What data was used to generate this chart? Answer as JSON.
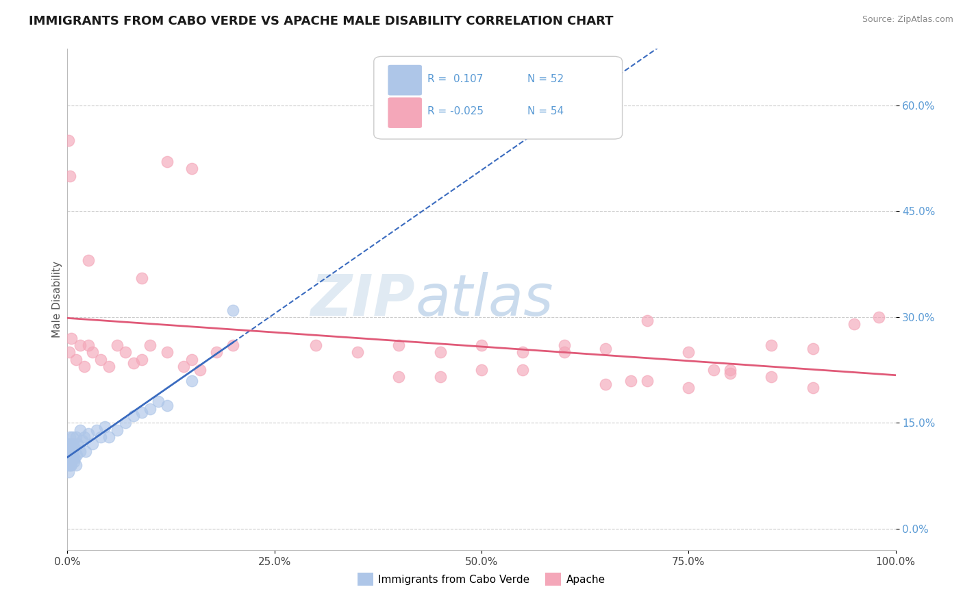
{
  "title": "IMMIGRANTS FROM CABO VERDE VS APACHE MALE DISABILITY CORRELATION CHART",
  "source": "Source: ZipAtlas.com",
  "ylabel": "Male Disability",
  "xlim": [
    0,
    100
  ],
  "ylim": [
    -3,
    68
  ],
  "yticks": [
    0,
    15,
    30,
    45,
    60
  ],
  "xticks": [
    0,
    25,
    50,
    75,
    100
  ],
  "blue_color": "#aec6e8",
  "pink_color": "#f4a7b9",
  "blue_line_color": "#3a6bbf",
  "pink_line_color": "#e05a78",
  "grid_color": "#cccccc",
  "title_color": "#1a1a1a",
  "tick_color": "#5b9bd5",
  "watermark_zip": "ZIP",
  "watermark_atlas": "atlas",
  "r1": 0.107,
  "n1": 52,
  "r2": -0.025,
  "n2": 54,
  "blue_x": [
    0.05,
    0.08,
    0.1,
    0.1,
    0.12,
    0.15,
    0.15,
    0.18,
    0.2,
    0.2,
    0.22,
    0.25,
    0.3,
    0.3,
    0.35,
    0.4,
    0.4,
    0.45,
    0.5,
    0.5,
    0.55,
    0.6,
    0.6,
    0.7,
    0.7,
    0.8,
    0.8,
    0.9,
    1.0,
    1.0,
    1.1,
    1.2,
    1.5,
    1.5,
    1.8,
    2.0,
    2.2,
    2.5,
    3.0,
    3.5,
    4.0,
    4.5,
    5.0,
    6.0,
    7.0,
    8.0,
    9.0,
    10.0,
    11.0,
    12.0,
    15.0,
    20.0
  ],
  "blue_y": [
    10.0,
    9.0,
    8.0,
    11.0,
    10.5,
    9.5,
    11.5,
    10.0,
    9.0,
    12.0,
    10.0,
    11.0,
    9.5,
    13.0,
    10.0,
    9.0,
    11.0,
    10.5,
    9.0,
    12.0,
    10.0,
    11.0,
    13.0,
    10.0,
    12.0,
    9.5,
    11.5,
    10.0,
    9.0,
    13.0,
    10.5,
    12.0,
    11.0,
    14.0,
    12.5,
    13.0,
    11.0,
    13.5,
    12.0,
    14.0,
    13.0,
    14.5,
    13.0,
    14.0,
    15.0,
    16.0,
    16.5,
    17.0,
    18.0,
    17.5,
    21.0,
    31.0
  ],
  "pink_x_low": [
    0.2,
    0.5,
    1.0,
    1.5,
    2.0,
    2.5,
    3.0,
    4.0,
    5.0,
    6.0,
    7.0,
    8.0,
    9.0,
    10.0,
    12.0,
    14.0,
    15.0,
    16.0,
    18.0,
    20.0
  ],
  "pink_y_low": [
    25.0,
    27.0,
    24.0,
    26.0,
    23.0,
    26.0,
    25.0,
    24.0,
    23.0,
    26.0,
    25.0,
    23.5,
    24.0,
    26.0,
    25.0,
    23.0,
    24.0,
    22.5,
    25.0,
    26.0
  ],
  "pink_x_high": [
    0.1,
    0.3,
    2.5,
    9.0,
    12.0,
    15.0
  ],
  "pink_y_high": [
    55.0,
    50.0,
    38.0,
    35.5,
    52.0,
    51.0
  ],
  "pink_x_right": [
    30.0,
    35.0,
    40.0,
    45.0,
    50.0,
    55.0,
    60.0,
    65.0,
    70.0,
    75.0,
    80.0,
    85.0,
    90.0,
    95.0,
    98.0,
    50.0,
    60.0,
    70.0,
    80.0,
    90.0,
    40.0,
    65.0,
    75.0,
    85.0,
    45.0,
    55.0,
    68.0,
    78.0
  ],
  "pink_y_right": [
    26.0,
    25.0,
    26.0,
    25.0,
    26.0,
    25.0,
    26.0,
    25.5,
    29.5,
    25.0,
    22.5,
    26.0,
    25.5,
    29.0,
    30.0,
    22.5,
    25.0,
    21.0,
    22.0,
    20.0,
    21.5,
    20.5,
    20.0,
    21.5,
    21.5,
    22.5,
    21.0,
    22.5
  ]
}
